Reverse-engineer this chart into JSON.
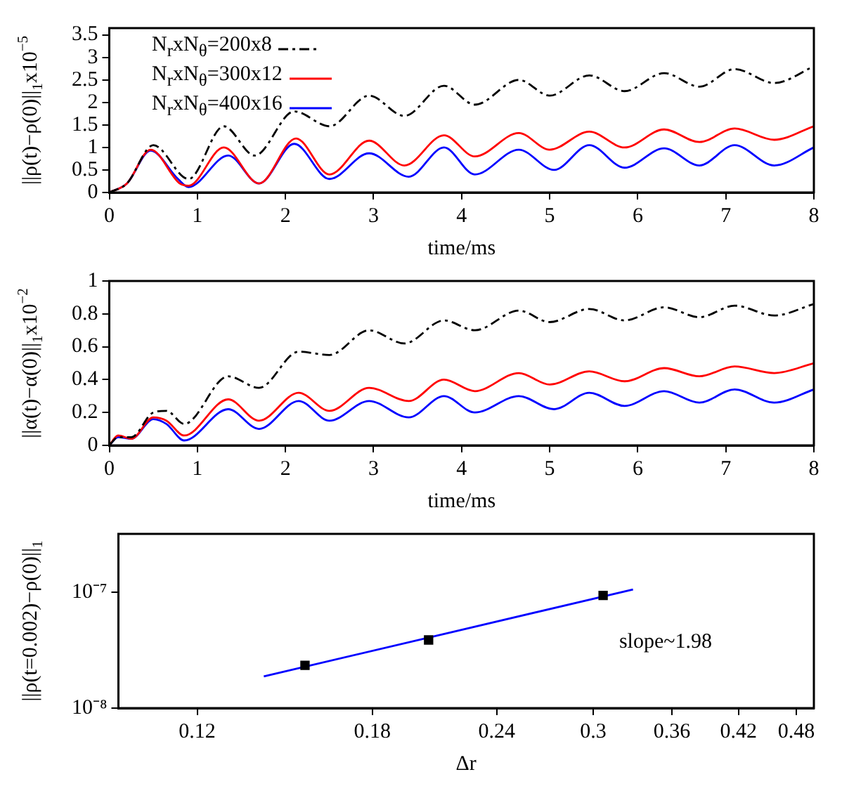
{
  "chart_data": [
    {
      "type": "line",
      "xlabel": "time/ms",
      "ylabel": "||ρ(t)−ρ(0)||$_{1}$x10$^{−5}$",
      "xlim": [
        0,
        8
      ],
      "xticks": [
        0,
        1,
        2,
        3,
        4,
        5,
        6,
        7,
        8
      ],
      "ylim": [
        0,
        3.65
      ],
      "yticks": [
        0,
        0.5,
        1,
        1.5,
        2,
        2.5,
        3,
        3.5
      ],
      "grid": false,
      "legend": "top left",
      "marker": "none",
      "series": [
        {
          "name": "N$_{r}$xN$_{θ}$=200x8",
          "color": "#000000",
          "line_style": "dashed",
          "x": [
            0,
            0.2,
            0.5,
            0.9,
            1.3,
            1.65,
            2.1,
            2.5,
            2.95,
            3.35,
            3.8,
            4.15,
            4.65,
            5.0,
            5.45,
            5.85,
            6.3,
            6.7,
            7.1,
            7.55,
            8
          ],
          "values": [
            0,
            0.2,
            1.05,
            0.3,
            1.47,
            0.82,
            1.8,
            1.47,
            2.15,
            1.7,
            2.37,
            1.95,
            2.5,
            2.15,
            2.6,
            2.25,
            2.65,
            2.35,
            2.74,
            2.43,
            2.8
          ]
        },
        {
          "name": "N$_{r}$xN$_{θ}$=300x12",
          "color": "#ff0000",
          "line_style": "solid",
          "x": [
            0,
            0.2,
            0.47,
            0.8,
            0.9,
            1.3,
            1.7,
            2.12,
            2.5,
            2.95,
            3.35,
            3.8,
            4.15,
            4.65,
            5.0,
            5.45,
            5.85,
            6.3,
            6.7,
            7.1,
            7.55,
            8
          ],
          "values": [
            0,
            0.2,
            0.95,
            0.2,
            0.15,
            1.0,
            0.2,
            1.2,
            0.4,
            1.15,
            0.6,
            1.27,
            0.8,
            1.32,
            0.95,
            1.35,
            1.0,
            1.4,
            1.12,
            1.42,
            1.17,
            1.47
          ]
        },
        {
          "name": "N$_{r}$xN$_{θ}$=400x16",
          "color": "#0000ff",
          "line_style": "solid",
          "x": [
            0,
            0.2,
            0.47,
            0.78,
            0.9,
            1.35,
            1.7,
            2.1,
            2.5,
            2.95,
            3.4,
            3.8,
            4.15,
            4.65,
            5.05,
            5.45,
            5.85,
            6.3,
            6.7,
            7.1,
            7.55,
            8
          ],
          "values": [
            0,
            0.2,
            0.93,
            0.3,
            0.12,
            0.82,
            0.2,
            1.08,
            0.3,
            0.87,
            0.35,
            1.0,
            0.4,
            0.95,
            0.5,
            1.05,
            0.55,
            0.98,
            0.6,
            1.05,
            0.6,
            1.0
          ]
        }
      ]
    },
    {
      "type": "line",
      "xlabel": "time/ms",
      "ylabel": "||α(t)−α(0)||$_{1}$x10$^{−2}$",
      "xlim": [
        0,
        8
      ],
      "xticks": [
        0,
        1,
        2,
        3,
        4,
        5,
        6,
        7,
        8
      ],
      "ylim": [
        0,
        1
      ],
      "yticks": [
        0,
        0.2,
        0.4,
        0.6,
        0.8,
        1
      ],
      "grid": false,
      "marker": "none",
      "series": [
        {
          "color": "#000000",
          "line_style": "dashed",
          "x": [
            0,
            0.1,
            0.25,
            0.5,
            0.65,
            0.85,
            1.35,
            1.7,
            2.15,
            2.5,
            2.95,
            3.35,
            3.8,
            4.15,
            4.65,
            5.0,
            5.45,
            5.85,
            6.3,
            6.7,
            7.1,
            7.55,
            8
          ],
          "values": [
            0,
            0.05,
            0.05,
            0.2,
            0.21,
            0.13,
            0.42,
            0.35,
            0.57,
            0.55,
            0.7,
            0.62,
            0.76,
            0.7,
            0.82,
            0.75,
            0.83,
            0.76,
            0.84,
            0.78,
            0.85,
            0.79,
            0.86
          ]
        },
        {
          "color": "#ff0000",
          "line_style": "solid",
          "x": [
            0,
            0.1,
            0.25,
            0.5,
            0.65,
            0.85,
            1.35,
            1.7,
            2.15,
            2.5,
            2.95,
            3.4,
            3.8,
            4.15,
            4.65,
            5.0,
            5.45,
            5.85,
            6.3,
            6.7,
            7.1,
            7.55,
            8
          ],
          "values": [
            0,
            0.06,
            0.04,
            0.17,
            0.15,
            0.06,
            0.28,
            0.15,
            0.32,
            0.21,
            0.35,
            0.27,
            0.4,
            0.33,
            0.44,
            0.37,
            0.45,
            0.39,
            0.47,
            0.42,
            0.48,
            0.44,
            0.5
          ]
        },
        {
          "color": "#0000ff",
          "line_style": "solid",
          "x": [
            0,
            0.1,
            0.25,
            0.5,
            0.65,
            0.85,
            1.35,
            1.7,
            2.15,
            2.5,
            2.95,
            3.4,
            3.8,
            4.15,
            4.65,
            5.05,
            5.45,
            5.85,
            6.3,
            6.7,
            7.1,
            7.55,
            8
          ],
          "values": [
            0,
            0.05,
            0.04,
            0.16,
            0.13,
            0.03,
            0.22,
            0.1,
            0.27,
            0.15,
            0.27,
            0.17,
            0.3,
            0.2,
            0.3,
            0.22,
            0.32,
            0.24,
            0.33,
            0.26,
            0.34,
            0.26,
            0.34
          ]
        }
      ]
    },
    {
      "type": "scatter",
      "xlabel": "Δr",
      "ylabel": "||ρ(t=0.002)−ρ(0)||$_{1}$",
      "log": "xy",
      "xlim": [
        0.1,
        0.5
      ],
      "xticks": [
        0.12,
        0.18,
        0.24,
        0.3,
        0.36,
        0.42,
        0.48
      ],
      "ylim": [
        1e-08,
        3.2e-07
      ],
      "yticks": [
        {
          "value": 1e-08,
          "label": "10⁻⁸"
        },
        {
          "value": 1e-07,
          "label": "10⁻⁷"
        }
      ],
      "grid": false,
      "annotations": [
        "slope~1.98"
      ],
      "series": [
        {
          "color": "#000000",
          "marker": "square",
          "x": [
            0.154,
            0.205,
            0.307
          ],
          "values": [
            2.34e-08,
            3.88e-08,
            9.4e-08
          ]
        },
        {
          "type": "line",
          "color": "#0000ff",
          "marker": "none",
          "line_style": "solid",
          "x": [
            0.14,
            0.329
          ],
          "values": [
            1.88e-08,
            1.06e-07
          ]
        }
      ]
    }
  ]
}
